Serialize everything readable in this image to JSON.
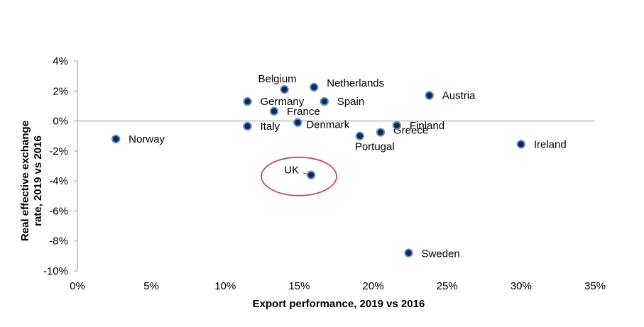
{
  "chart_data": {
    "type": "scatter",
    "title": "",
    "xlabel": "Export performance, 2019 vs 2016",
    "ylabel": "Real effective exchange rate, 2019 vs 2016",
    "ylabel_lines": [
      "Real effective exchange",
      "rate, 2019 vs 2016"
    ],
    "xlim": [
      0,
      35
    ],
    "ylim": [
      -10,
      4
    ],
    "x_ticks": [
      0,
      5,
      10,
      15,
      20,
      25,
      30,
      35
    ],
    "x_tick_labels": [
      "0%",
      "5%",
      "10%",
      "15%",
      "20%",
      "25%",
      "30%",
      "35%"
    ],
    "y_ticks": [
      4,
      2,
      0,
      -2,
      -4,
      -6,
      -8,
      -10
    ],
    "y_tick_labels": [
      "4%",
      "2%",
      "0%",
      "-2%",
      "-4%",
      "-6%",
      "-8%",
      "-10%"
    ],
    "grid": false,
    "marker_color": "#0b2a5b",
    "marker_edge_color": "#6f8fc0",
    "highlight_color": "#c0504d",
    "highlight": "UK",
    "points": [
      {
        "label": "Norway",
        "x": 2.6,
        "y": -1.2
      },
      {
        "label": "Germany",
        "x": 11.5,
        "y": 1.3
      },
      {
        "label": "Italy",
        "x": 11.5,
        "y": -0.35
      },
      {
        "label": "France",
        "x": 13.3,
        "y": 0.65
      },
      {
        "label": "Belgium",
        "x": 14.0,
        "y": 2.1
      },
      {
        "label": "Denmark",
        "x": 14.9,
        "y": -0.1
      },
      {
        "label": "UK",
        "x": 15.8,
        "y": -3.6
      },
      {
        "label": "Netherlands",
        "x": 16.0,
        "y": 2.25
      },
      {
        "label": "Spain",
        "x": 16.7,
        "y": 1.3
      },
      {
        "label": "Portugal",
        "x": 19.1,
        "y": -1.0
      },
      {
        "label": "Greece",
        "x": 20.5,
        "y": -0.75
      },
      {
        "label": "Finland",
        "x": 21.6,
        "y": -0.3
      },
      {
        "label": "Sweden",
        "x": 22.4,
        "y": -8.8
      },
      {
        "label": "Austria",
        "x": 23.8,
        "y": 1.7
      },
      {
        "label": "Ireland",
        "x": 30.0,
        "y": -1.55
      }
    ]
  }
}
